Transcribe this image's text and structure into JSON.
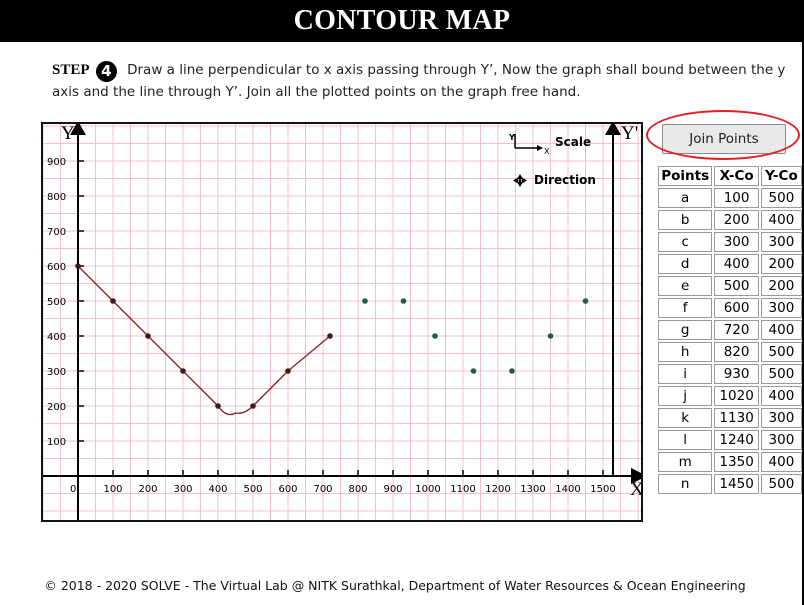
{
  "header": {
    "title": "CONTOUR MAP"
  },
  "instructions": {
    "step_label": "STEP",
    "step_number": "4",
    "text": "Draw a line perpendicular to x axis passing through Y’, Now the graph shall bound between the y axis and the line through Y’. Join all the plotted points on the graph free hand."
  },
  "plot": {
    "y_axis_label": "Y",
    "y_prime_label": "Y'",
    "x_axis_label": "X",
    "origin_label": "0",
    "x_ticks": [
      "100",
      "200",
      "300",
      "400",
      "500",
      "600",
      "700",
      "800",
      "900",
      "1000",
      "1100",
      "1200",
      "1300",
      "1400",
      "1500"
    ],
    "y_ticks": [
      "100",
      "200",
      "300",
      "400",
      "500",
      "600",
      "700",
      "800",
      "900"
    ],
    "legend": {
      "scale_label": "Scale",
      "scale_icon_y": "Y",
      "scale_icon_x": "X",
      "direction_label": "Direction"
    }
  },
  "chart_data": {
    "type": "scatter",
    "xlabel": "X",
    "ylabel": "Y",
    "xlim": [
      0,
      1600
    ],
    "ylim": [
      0,
      1000
    ],
    "grid": true,
    "series": [
      {
        "points": [
          [
            0,
            600
          ],
          [
            100,
            500
          ],
          [
            200,
            400
          ],
          [
            300,
            300
          ],
          [
            400,
            200
          ],
          [
            500,
            200
          ],
          [
            600,
            300
          ],
          [
            720,
            400
          ],
          [
            820,
            500
          ],
          [
            930,
            500
          ],
          [
            1020,
            400
          ],
          [
            1130,
            300
          ],
          [
            1240,
            300
          ],
          [
            1350,
            400
          ],
          [
            1450,
            500
          ]
        ]
      }
    ],
    "joined_curve": [
      [
        0,
        600
      ],
      [
        100,
        500
      ],
      [
        200,
        400
      ],
      [
        300,
        300
      ],
      [
        400,
        200
      ],
      [
        450,
        180
      ],
      [
        500,
        200
      ],
      [
        600,
        300
      ],
      [
        720,
        400
      ]
    ],
    "colors": {
      "points": "#1d5e48",
      "curve": "#8b2323",
      "grid": "#f4bfcb",
      "point_on_curve": "#3a1a1a"
    }
  },
  "join_button": {
    "label": "Join Points"
  },
  "table": {
    "headers": [
      "Points",
      "X-Co",
      "Y-Co"
    ],
    "rows": [
      [
        "a",
        "100",
        "500"
      ],
      [
        "b",
        "200",
        "400"
      ],
      [
        "c",
        "300",
        "300"
      ],
      [
        "d",
        "400",
        "200"
      ],
      [
        "e",
        "500",
        "200"
      ],
      [
        "f",
        "600",
        "300"
      ],
      [
        "g",
        "720",
        "400"
      ],
      [
        "h",
        "820",
        "500"
      ],
      [
        "i",
        "930",
        "500"
      ],
      [
        "j",
        "1020",
        "400"
      ],
      [
        "k",
        "1130",
        "300"
      ],
      [
        "l",
        "1240",
        "300"
      ],
      [
        "m",
        "1350",
        "400"
      ],
      [
        "n",
        "1450",
        "500"
      ]
    ]
  },
  "footer": {
    "text": "© 2018 - 2020 SOLVE - The Virtual Lab @ NITK Surathkal, Department of Water Resources & Ocean Engineering"
  }
}
